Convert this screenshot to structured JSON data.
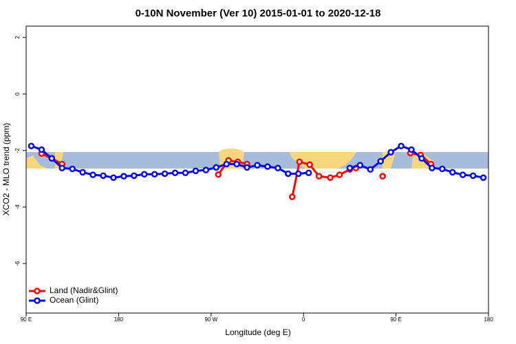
{
  "chart_data": {
    "type": "line",
    "title": "0-10N November (Ver 10)   2015-01-01 to 2020-12-18",
    "x_label": "Longitude (deg E)",
    "y_label": "XCO2 - MLO trend (ppm)",
    "xlim": [
      90,
      540
    ],
    "xticks": [
      {
        "value": 90,
        "label": "90 E"
      },
      180,
      {
        "value": 270,
        "label": "90 W"
      },
      {
        "value": 360,
        "label": "0"
      },
      {
        "value": 450,
        "label": "90 E"
      },
      {
        "value": 540,
        "label": "180"
      }
    ],
    "ylim": [
      -7.75,
      2.4
    ],
    "yticks": [
      -6,
      -4,
      -2,
      0,
      2
    ],
    "legend": "bottom-left",
    "series": [
      {
        "name": "Land (Nadir&Glint)",
        "color": "#ff0000",
        "x": [
          105,
          115,
          125,
          135,
          277,
          287,
          296,
          305,
          315,
          349,
          356,
          366,
          375,
          386,
          395,
          405,
          411,
          425,
          437,
          447,
          464,
          474,
          484
        ],
        "values": [
          -2.11,
          -2.28,
          -2.48,
          null,
          -2.85,
          -2.35,
          -2.4,
          -2.48,
          null,
          -3.64,
          -2.4,
          -2.5,
          -2.91,
          -2.96,
          -2.86,
          -2.67,
          -2.62,
          null,
          -2.91,
          null,
          -2.09,
          -2.16,
          -2.48
        ]
      },
      {
        "name": "Ocean (Glint)",
        "color": "#0000ff",
        "x": [
          95,
          105,
          115,
          125,
          135,
          145,
          155,
          165,
          175,
          185,
          195,
          205,
          215,
          225,
          235,
          245,
          255,
          265,
          275,
          285,
          295,
          305,
          315,
          325,
          335,
          345,
          355,
          365,
          375,
          385,
          395,
          405,
          415,
          425,
          435,
          445,
          455,
          465,
          475,
          485,
          495,
          505,
          515,
          525,
          535
        ],
        "values": [
          -1.84,
          -1.97,
          -2.28,
          -2.62,
          -2.65,
          -2.77,
          -2.86,
          -2.89,
          -2.96,
          -2.91,
          -2.89,
          -2.84,
          -2.84,
          -2.82,
          -2.79,
          -2.79,
          -2.72,
          -2.69,
          -2.6,
          -2.48,
          -2.48,
          -2.6,
          -2.52,
          -2.57,
          -2.62,
          -2.82,
          -2.82,
          -2.79,
          null,
          null,
          null,
          -2.62,
          -2.52,
          -2.67,
          -2.38,
          -2.06,
          -1.84,
          -1.97,
          -2.28,
          -2.62,
          -2.65,
          -2.77,
          -2.86,
          -2.89,
          -2.96
        ]
      }
    ]
  }
}
